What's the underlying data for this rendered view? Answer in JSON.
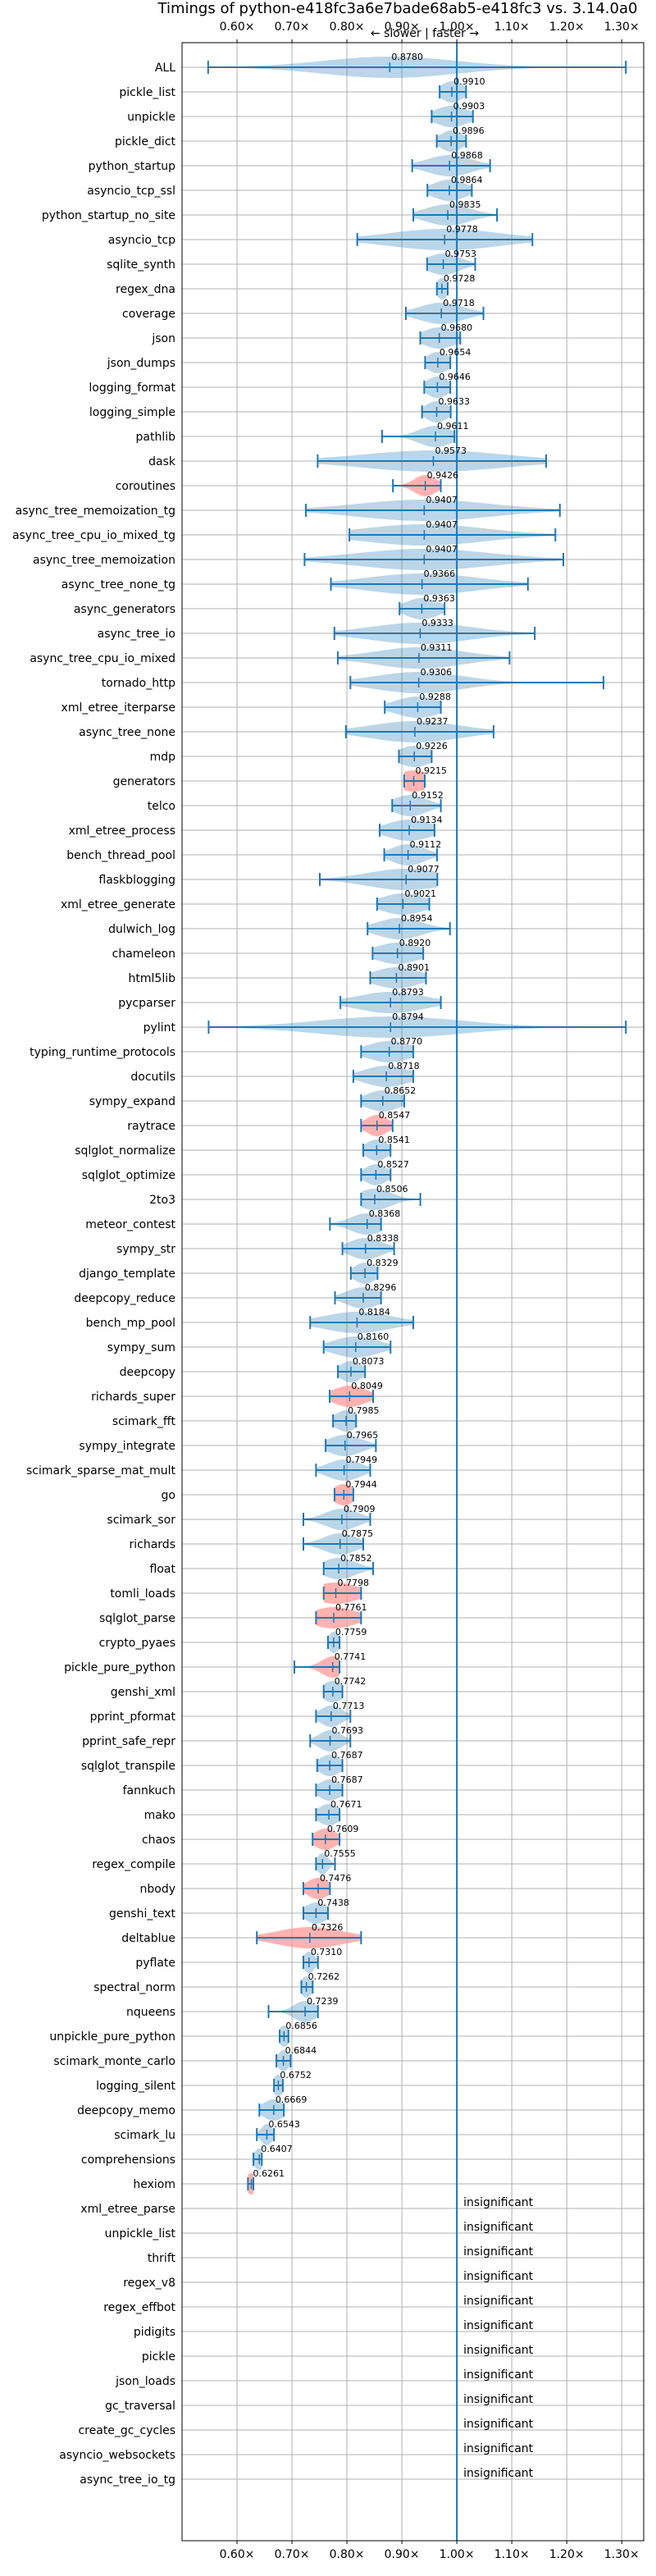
{
  "chart_data": {
    "type": "violin",
    "title": "Timings of python-e418fc3a6e7bade68ab5-e418fc3 vs. 3.14.0a0",
    "direction_label": "← slower | faster →",
    "xlim": [
      0.5,
      1.34
    ],
    "x_ticks": [
      0.6,
      0.7,
      0.8,
      0.9,
      1.0,
      1.1,
      1.2,
      1.3
    ],
    "x_tick_labels": [
      "0.60×",
      "0.70×",
      "0.80×",
      "0.90×",
      "1.00×",
      "1.10×",
      "1.20×",
      "1.30×"
    ],
    "reference_value": 1.0,
    "insignificant_label": "insignificant",
    "colors": {
      "normal": "#1f77b4",
      "slower": "#ff9896",
      "grid": "#b0b0b0"
    },
    "grid": true,
    "benchmarks": [
      {
        "name": "ALL",
        "value": 0.878,
        "low": 0.5475,
        "high": 1.3075,
        "width": 0.12,
        "label": "0.8780"
      },
      {
        "name": "pickle_list",
        "value": 0.991,
        "low": 0.9687,
        "high": 1.0168,
        "width": 0.02,
        "label": "0.9910"
      },
      {
        "name": "unpickle",
        "value": 0.9903,
        "low": 0.9542,
        "high": 1.0293,
        "width": 0.03,
        "label": "0.9903"
      },
      {
        "name": "pickle_dict",
        "value": 0.9896,
        "low": 0.9635,
        "high": 1.0168,
        "width": 0.02,
        "label": "0.9896"
      },
      {
        "name": "python_startup",
        "value": 0.9868,
        "low": 0.9188,
        "high": 1.0605,
        "width": 0.04,
        "label": "0.9868"
      },
      {
        "name": "asyncio_tcp_ssl",
        "value": 0.9864,
        "low": 0.9465,
        "high": 1.0273,
        "width": 0.03,
        "label": "0.9864"
      },
      {
        "name": "python_startup_no_site",
        "value": 0.9835,
        "low": 0.9208,
        "high": 1.0731,
        "width": 0.04,
        "label": "0.9835"
      },
      {
        "name": "asyncio_tcp",
        "value": 0.9778,
        "low": 0.8188,
        "high": 1.1375,
        "width": 0.1,
        "label": "0.9778"
      },
      {
        "name": "sqlite_synth",
        "value": 0.9753,
        "low": 0.9458,
        "high": 1.0334,
        "width": 0.03,
        "label": "0.9753"
      },
      {
        "name": "regex_dna",
        "value": 0.9728,
        "low": 0.9637,
        "high": 0.9834,
        "width": 0.01,
        "label": "0.9728"
      },
      {
        "name": "coverage",
        "value": 0.9718,
        "low": 0.9073,
        "high": 1.0484,
        "width": 0.04,
        "label": "0.9718"
      },
      {
        "name": "json",
        "value": 0.968,
        "low": 0.9334,
        "high": 1.0063,
        "width": 0.03,
        "label": "0.9680"
      },
      {
        "name": "json_dumps",
        "value": 0.9654,
        "low": 0.9422,
        "high": 0.9881,
        "width": 0.02,
        "label": "0.9654"
      },
      {
        "name": "logging_format",
        "value": 0.9646,
        "low": 0.9407,
        "high": 0.9881,
        "width": 0.02,
        "label": "0.9646"
      },
      {
        "name": "logging_simple",
        "value": 0.9633,
        "low": 0.9367,
        "high": 0.9888,
        "width": 0.02,
        "label": "0.9633"
      },
      {
        "name": "pathlib",
        "value": 0.9611,
        "low": 0.8639,
        "high": 0.9957,
        "width": 0.03,
        "label": "0.9611"
      },
      {
        "name": "dask",
        "value": 0.9573,
        "low": 0.7468,
        "high": 1.1625,
        "width": 0.13,
        "label": "0.9573"
      },
      {
        "name": "coroutines",
        "value": 0.9426,
        "low": 0.8837,
        "high": 0.9708,
        "width": 0.02,
        "label": "0.9426",
        "slower": true
      },
      {
        "name": "async_tree_memoization_tg",
        "value": 0.9407,
        "low": 0.7254,
        "high": 1.1875,
        "width": 0.12,
        "label": "0.9407"
      },
      {
        "name": "async_tree_cpu_io_mixed_tg",
        "value": 0.9407,
        "low": 0.8045,
        "high": 1.1793,
        "width": 0.11,
        "label": "0.9407"
      },
      {
        "name": "async_tree_memoization",
        "value": 0.9407,
        "low": 0.7229,
        "high": 1.1938,
        "width": 0.12,
        "label": "0.9407"
      },
      {
        "name": "async_tree_none_tg",
        "value": 0.9366,
        "low": 0.7709,
        "high": 1.1293,
        "width": 0.1,
        "label": "0.9366"
      },
      {
        "name": "async_generators",
        "value": 0.9363,
        "low": 0.8957,
        "high": 0.9777,
        "width": 0.03,
        "label": "0.9363"
      },
      {
        "name": "async_tree_io",
        "value": 0.9333,
        "low": 0.7772,
        "high": 1.1418,
        "width": 0.09,
        "label": "0.9333"
      },
      {
        "name": "async_tree_cpu_io_mixed",
        "value": 0.9311,
        "low": 0.7834,
        "high": 1.0959,
        "width": 0.08,
        "label": "0.9311"
      },
      {
        "name": "tornado_http",
        "value": 0.9306,
        "low": 0.8063,
        "high": 1.2668,
        "width": 0.08,
        "label": "0.9306"
      },
      {
        "name": "xml_etree_iterparse",
        "value": 0.9288,
        "low": 0.8688,
        "high": 0.9709,
        "width": 0.04,
        "label": "0.9288"
      },
      {
        "name": "async_tree_none",
        "value": 0.9237,
        "low": 0.7981,
        "high": 1.0668,
        "width": 0.08,
        "label": "0.9237"
      },
      {
        "name": "mdp",
        "value": 0.9226,
        "low": 0.8946,
        "high": 0.9542,
        "width": 0.03,
        "label": "0.9226"
      },
      {
        "name": "generators",
        "value": 0.9215,
        "low": 0.9041,
        "high": 0.9417,
        "width": 0.03,
        "label": "0.9215",
        "slower": true
      },
      {
        "name": "telco",
        "value": 0.9152,
        "low": 0.8824,
        "high": 0.9709,
        "width": 0.03,
        "label": "0.9152"
      },
      {
        "name": "xml_etree_process",
        "value": 0.9134,
        "low": 0.8596,
        "high": 0.9594,
        "width": 0.04,
        "label": "0.9134"
      },
      {
        "name": "bench_thread_pool",
        "value": 0.9112,
        "low": 0.8679,
        "high": 0.9639,
        "width": 0.03,
        "label": "0.9112"
      },
      {
        "name": "flaskblogging",
        "value": 0.9077,
        "low": 0.7507,
        "high": 0.9646,
        "width": 0.07,
        "label": "0.9077"
      },
      {
        "name": "xml_etree_generate",
        "value": 0.9021,
        "low": 0.8549,
        "high": 0.9499,
        "width": 0.04,
        "label": "0.9021"
      },
      {
        "name": "dulwich_log",
        "value": 0.8954,
        "low": 0.8375,
        "high": 0.9875,
        "width": 0.04,
        "label": "0.8954"
      },
      {
        "name": "chameleon",
        "value": 0.892,
        "low": 0.8467,
        "high": 0.9389,
        "width": 0.04,
        "label": "0.8920"
      },
      {
        "name": "html5lib",
        "value": 0.8901,
        "low": 0.8424,
        "high": 0.9439,
        "width": 0.04,
        "label": "0.8901"
      },
      {
        "name": "pycparser",
        "value": 0.8793,
        "low": 0.7881,
        "high": 0.9709,
        "width": 0.06,
        "label": "0.8793"
      },
      {
        "name": "pylint",
        "value": 0.8794,
        "low": 0.5484,
        "high": 1.3075,
        "width": 0.13,
        "label": "0.8794"
      },
      {
        "name": "typing_runtime_protocols",
        "value": 0.877,
        "low": 0.8258,
        "high": 0.9207,
        "width": 0.04,
        "label": "0.8770"
      },
      {
        "name": "docutils",
        "value": 0.8718,
        "low": 0.8117,
        "high": 0.9207,
        "width": 0.04,
        "label": "0.8718"
      },
      {
        "name": "sympy_expand",
        "value": 0.8652,
        "low": 0.8258,
        "high": 0.9043,
        "width": 0.03,
        "label": "0.8652"
      },
      {
        "name": "raytrace",
        "value": 0.8547,
        "low": 0.8258,
        "high": 0.8832,
        "width": 0.02,
        "label": "0.8547",
        "slower": true
      },
      {
        "name": "sqlglot_normalize",
        "value": 0.8541,
        "low": 0.8297,
        "high": 0.8793,
        "width": 0.02,
        "label": "0.8541"
      },
      {
        "name": "sqlglot_optimize",
        "value": 0.8527,
        "low": 0.8258,
        "high": 0.8794,
        "width": 0.02,
        "label": "0.8527"
      },
      {
        "name": "2to3",
        "value": 0.8506,
        "low": 0.8258,
        "high": 0.9336,
        "width": 0.03,
        "label": "0.8506"
      },
      {
        "name": "meteor_contest",
        "value": 0.8368,
        "low": 0.7691,
        "high": 0.8621,
        "width": 0.03,
        "label": "0.8368"
      },
      {
        "name": "sympy_str",
        "value": 0.8338,
        "low": 0.7918,
        "high": 0.8859,
        "width": 0.03,
        "label": "0.8338"
      },
      {
        "name": "django_template",
        "value": 0.8329,
        "low": 0.8071,
        "high": 0.8557,
        "width": 0.02,
        "label": "0.8329"
      },
      {
        "name": "deepcopy_reduce",
        "value": 0.8296,
        "low": 0.7783,
        "high": 0.8621,
        "width": 0.03,
        "label": "0.8296"
      },
      {
        "name": "bench_mp_pool",
        "value": 0.8184,
        "low": 0.7331,
        "high": 0.9207,
        "width": 0.06,
        "label": "0.8184"
      },
      {
        "name": "sympy_sum",
        "value": 0.816,
        "low": 0.7577,
        "high": 0.8794,
        "width": 0.04,
        "label": "0.8160"
      },
      {
        "name": "deepcopy",
        "value": 0.8073,
        "low": 0.7836,
        "high": 0.833,
        "width": 0.02,
        "label": "0.8073"
      },
      {
        "name": "richards_super",
        "value": 0.8049,
        "low": 0.7686,
        "high": 0.8476,
        "width": 0.03,
        "label": "0.8049",
        "slower": true
      },
      {
        "name": "scimark_fft",
        "value": 0.7985,
        "low": 0.7747,
        "high": 0.8167,
        "width": 0.02,
        "label": "0.7985"
      },
      {
        "name": "sympy_integrate",
        "value": 0.7965,
        "low": 0.7613,
        "high": 0.8527,
        "width": 0.03,
        "label": "0.7965"
      },
      {
        "name": "scimark_sparse_mat_mult",
        "value": 0.7949,
        "low": 0.7438,
        "high": 0.8424,
        "width": 0.03,
        "label": "0.7949"
      },
      {
        "name": "go",
        "value": 0.7944,
        "low": 0.7774,
        "high": 0.8117,
        "width": 0.02,
        "label": "0.7944",
        "slower": true
      },
      {
        "name": "scimark_sor",
        "value": 0.7909,
        "low": 0.7208,
        "high": 0.8424,
        "width": 0.03,
        "label": "0.7909"
      },
      {
        "name": "richards",
        "value": 0.7875,
        "low": 0.7208,
        "high": 0.8297,
        "width": 0.03,
        "label": "0.7875"
      },
      {
        "name": "float",
        "value": 0.7852,
        "low": 0.7577,
        "high": 0.8476,
        "width": 0.03,
        "label": "0.7852"
      },
      {
        "name": "tomli_loads",
        "value": 0.7798,
        "low": 0.7577,
        "high": 0.8258,
        "width": 0.04,
        "label": "0.7798",
        "slower": true
      },
      {
        "name": "sqlglot_parse",
        "value": 0.7761,
        "low": 0.7438,
        "high": 0.8258,
        "width": 0.04,
        "label": "0.7761",
        "slower": true
      },
      {
        "name": "crypto_pyaes",
        "value": 0.7759,
        "low": 0.7655,
        "high": 0.7866,
        "width": 0.01,
        "label": "0.7759"
      },
      {
        "name": "pickle_pure_python",
        "value": 0.7741,
        "low": 0.7044,
        "high": 0.7866,
        "width": 0.02,
        "label": "0.7741",
        "slower": true
      },
      {
        "name": "genshi_xml",
        "value": 0.7742,
        "low": 0.7577,
        "high": 0.7918,
        "width": 0.02,
        "label": "0.7742"
      },
      {
        "name": "pprint_pformat",
        "value": 0.7713,
        "low": 0.7438,
        "high": 0.8063,
        "width": 0.02,
        "label": "0.7713"
      },
      {
        "name": "pprint_safe_repr",
        "value": 0.7693,
        "low": 0.7331,
        "high": 0.8063,
        "width": 0.02,
        "label": "0.7693"
      },
      {
        "name": "sqlglot_transpile",
        "value": 0.7687,
        "low": 0.7459,
        "high": 0.7918,
        "width": 0.02,
        "label": "0.7687"
      },
      {
        "name": "fannkuch",
        "value": 0.7687,
        "low": 0.7438,
        "high": 0.7918,
        "width": 0.02,
        "label": "0.7687"
      },
      {
        "name": "mako",
        "value": 0.7671,
        "low": 0.7438,
        "high": 0.7866,
        "width": 0.02,
        "label": "0.7671"
      },
      {
        "name": "chaos",
        "value": 0.7609,
        "low": 0.7375,
        "high": 0.7866,
        "width": 0.02,
        "label": "0.7609",
        "slower": true
      },
      {
        "name": "regex_compile",
        "value": 0.7555,
        "low": 0.7438,
        "high": 0.7783,
        "width": 0.01,
        "label": "0.7555"
      },
      {
        "name": "nbody",
        "value": 0.7476,
        "low": 0.7208,
        "high": 0.7691,
        "width": 0.02,
        "label": "0.7476",
        "slower": true
      },
      {
        "name": "genshi_text",
        "value": 0.7438,
        "low": 0.7208,
        "high": 0.7655,
        "width": 0.02,
        "label": "0.7438"
      },
      {
        "name": "deltablue",
        "value": 0.7326,
        "low": 0.6361,
        "high": 0.8258,
        "width": 0.06,
        "label": "0.7326",
        "slower": true
      },
      {
        "name": "pyflate",
        "value": 0.731,
        "low": 0.7208,
        "high": 0.7473,
        "width": 0.01,
        "label": "0.7310"
      },
      {
        "name": "spectral_norm",
        "value": 0.7262,
        "low": 0.7171,
        "high": 0.7377,
        "width": 0.01,
        "label": "0.7262"
      },
      {
        "name": "nqueens",
        "value": 0.7239,
        "low": 0.6574,
        "high": 0.7473,
        "width": 0.02,
        "label": "0.7239"
      },
      {
        "name": "unpickle_pure_python",
        "value": 0.6856,
        "low": 0.6776,
        "high": 0.6936,
        "width": 0.01,
        "label": "0.6856"
      },
      {
        "name": "scimark_monte_carlo",
        "value": 0.6844,
        "low": 0.6717,
        "high": 0.6975,
        "width": 0.01,
        "label": "0.6844"
      },
      {
        "name": "logging_silent",
        "value": 0.6752,
        "low": 0.6673,
        "high": 0.6834,
        "width": 0.01,
        "label": "0.6752"
      },
      {
        "name": "deepcopy_memo",
        "value": 0.6669,
        "low": 0.6407,
        "high": 0.6853,
        "width": 0.02,
        "label": "0.6669"
      },
      {
        "name": "scimark_lu",
        "value": 0.6543,
        "low": 0.6361,
        "high": 0.6673,
        "width": 0.01,
        "label": "0.6543"
      },
      {
        "name": "comprehensions",
        "value": 0.6407,
        "low": 0.6299,
        "high": 0.6452,
        "width": 0.01,
        "label": "0.6407"
      },
      {
        "name": "hexiom",
        "value": 0.6261,
        "low": 0.6199,
        "high": 0.6299,
        "width": 0.01,
        "label": "0.6261",
        "slower": true
      },
      {
        "name": "xml_etree_parse",
        "insignificant": true
      },
      {
        "name": "unpickle_list",
        "insignificant": true
      },
      {
        "name": "thrift",
        "insignificant": true
      },
      {
        "name": "regex_v8",
        "insignificant": true
      },
      {
        "name": "regex_effbot",
        "insignificant": true
      },
      {
        "name": "pidigits",
        "insignificant": true
      },
      {
        "name": "pickle",
        "insignificant": true
      },
      {
        "name": "json_loads",
        "insignificant": true
      },
      {
        "name": "gc_traversal",
        "insignificant": true
      },
      {
        "name": "create_gc_cycles",
        "insignificant": true
      },
      {
        "name": "asyncio_websockets",
        "insignificant": true
      },
      {
        "name": "async_tree_io_tg",
        "insignificant": true
      }
    ]
  }
}
